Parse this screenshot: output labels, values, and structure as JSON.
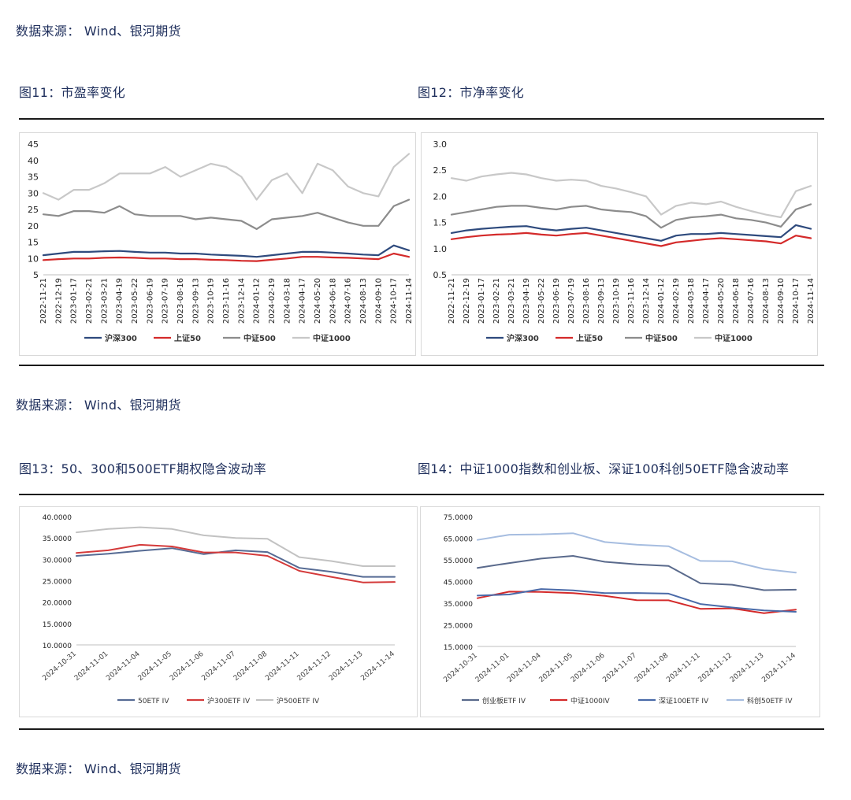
{
  "sources": [
    "数据来源：  Wind、银河期货",
    "数据来源：  Wind、银河期货",
    "数据来源：  Wind、银河期货"
  ],
  "figures": {
    "fig11_title": "图11：市盈率变化",
    "fig12_title": "图12：市净率变化",
    "fig13_title": "图13：50、300和500ETF期权隐含波动率",
    "fig14_title": "图14：中证1000指数和创业板、深证100科创50ETF隐含波动率"
  },
  "colors": {
    "hs300": "#2e4a7d",
    "sz50": "#d42a2a",
    "zz500": "#8c8c8c",
    "zz1000": "#c8c8c8",
    "etf50": "#566b94",
    "etf300": "#d43a3a",
    "etf500": "#c2c2c2",
    "cyb": "#5a6a8c",
    "zz1000iv": "#d42a2a",
    "sz100": "#4a6aa8",
    "kc50": "#a6bde0"
  },
  "chart_data": [
    {
      "id": "fig11",
      "type": "line",
      "x_ticks": [
        "2022-11-21",
        "2022-12-19",
        "2023-01-17",
        "2023-02-21",
        "2023-03-21",
        "2023-04-19",
        "2023-05-22",
        "2023-06-19",
        "2023-07-19",
        "2023-08-16",
        "2023-09-13",
        "2023-10-19",
        "2023-11-16",
        "2023-12-14",
        "2024-01-12",
        "2024-02-19",
        "2024-03-18",
        "2024-04-17",
        "2024-05-20",
        "2024-06-18",
        "2024-07-16",
        "2024-08-13",
        "2024-09-10",
        "2024-10-17",
        "2024-11-14"
      ],
      "y_ticks": [
        "5",
        "10",
        "15",
        "20",
        "25",
        "30",
        "35",
        "40",
        "45"
      ],
      "ylim": [
        5,
        45
      ],
      "series": [
        {
          "name": "沪深300",
          "values": [
            11,
            11.5,
            12,
            12,
            12.2,
            12.3,
            12,
            11.8,
            11.8,
            11.5,
            11.5,
            11.2,
            11,
            10.8,
            10.5,
            11,
            11.5,
            12,
            12,
            11.8,
            11.5,
            11.2,
            11,
            14,
            12.5
          ]
        },
        {
          "name": "上证50",
          "values": [
            9.5,
            9.8,
            10,
            10,
            10.2,
            10.3,
            10.2,
            10,
            10,
            9.8,
            9.8,
            9.6,
            9.5,
            9.3,
            9.2,
            9.6,
            10,
            10.5,
            10.5,
            10.3,
            10.2,
            10,
            9.8,
            11.5,
            10.5
          ]
        },
        {
          "name": "中证500",
          "values": [
            23.5,
            23,
            24.5,
            24.5,
            24,
            26,
            23.5,
            23,
            23,
            23,
            22,
            22.5,
            22,
            21.5,
            19,
            22,
            22.5,
            23,
            24,
            22.5,
            21,
            20,
            20,
            26,
            28
          ]
        },
        {
          "name": "中证1000",
          "values": [
            30,
            28,
            31,
            31,
            33,
            36,
            36,
            36,
            38,
            35,
            37,
            39,
            38,
            35,
            28,
            34,
            36,
            30,
            39,
            37,
            32,
            30,
            29,
            38,
            42
          ]
        }
      ]
    },
    {
      "id": "fig12",
      "type": "line",
      "x_ticks": [
        "2022-11-21",
        "2022-12-19",
        "2023-01-17",
        "2023-02-21",
        "2023-03-21",
        "2023-04-19",
        "2023-05-22",
        "2023-06-19",
        "2023-07-19",
        "2023-08-16",
        "2023-09-13",
        "2023-10-19",
        "2023-11-16",
        "2023-12-14",
        "2024-01-12",
        "2024-02-19",
        "2024-03-18",
        "2024-04-17",
        "2024-05-20",
        "2024-06-18",
        "2024-07-16",
        "2024-08-13",
        "2024-09-10",
        "2024-10-17",
        "2024-11-14"
      ],
      "y_ticks": [
        "0.5",
        "1.0",
        "1.5",
        "2.0",
        "2.5",
        "3.0"
      ],
      "ylim": [
        0.5,
        3.0
      ],
      "series": [
        {
          "name": "沪深300",
          "values": [
            1.3,
            1.35,
            1.38,
            1.4,
            1.42,
            1.43,
            1.38,
            1.35,
            1.38,
            1.4,
            1.35,
            1.3,
            1.25,
            1.2,
            1.15,
            1.25,
            1.28,
            1.28,
            1.3,
            1.28,
            1.26,
            1.24,
            1.22,
            1.45,
            1.38
          ]
        },
        {
          "name": "上证50",
          "values": [
            1.18,
            1.22,
            1.25,
            1.27,
            1.28,
            1.3,
            1.27,
            1.25,
            1.28,
            1.3,
            1.25,
            1.2,
            1.15,
            1.1,
            1.05,
            1.12,
            1.15,
            1.18,
            1.2,
            1.18,
            1.16,
            1.14,
            1.1,
            1.25,
            1.2
          ]
        },
        {
          "name": "中证500",
          "values": [
            1.65,
            1.7,
            1.75,
            1.8,
            1.82,
            1.82,
            1.78,
            1.75,
            1.8,
            1.82,
            1.75,
            1.72,
            1.7,
            1.62,
            1.4,
            1.55,
            1.6,
            1.62,
            1.65,
            1.58,
            1.55,
            1.5,
            1.42,
            1.75,
            1.85
          ]
        },
        {
          "name": "中证1000",
          "values": [
            2.35,
            2.3,
            2.38,
            2.42,
            2.45,
            2.42,
            2.35,
            2.3,
            2.32,
            2.3,
            2.2,
            2.15,
            2.08,
            2.0,
            1.65,
            1.82,
            1.88,
            1.85,
            1.9,
            1.8,
            1.72,
            1.65,
            1.6,
            2.1,
            2.2
          ]
        }
      ]
    },
    {
      "id": "fig13",
      "type": "line",
      "x_ticks": [
        "2024-10-31",
        "2024-11-01",
        "2024-11-04",
        "2024-11-05",
        "2024-11-06",
        "2024-11-07",
        "2024-11-08",
        "2024-11-11",
        "2024-11-12",
        "2024-11-13",
        "2024-11-14"
      ],
      "y_ticks": [
        "10.0000",
        "15.0000",
        "20.0000",
        "25.0000",
        "30.0000",
        "35.0000",
        "40.0000"
      ],
      "ylim": [
        10,
        40
      ],
      "series": [
        {
          "name": "50ETF IV",
          "values": [
            30.8,
            31.3,
            32.0,
            32.6,
            31.2,
            32.1,
            31.7,
            28.0,
            27.1,
            25.9,
            25.9
          ]
        },
        {
          "name": "沪300ETF IV",
          "values": [
            31.5,
            32.1,
            33.4,
            33.0,
            31.6,
            31.6,
            30.8,
            27.3,
            25.9,
            24.6,
            24.7
          ]
        },
        {
          "name": "沪500ETF IV",
          "values": [
            36.3,
            37.1,
            37.5,
            37.1,
            35.6,
            35.0,
            34.8,
            30.5,
            29.6,
            28.4,
            28.4
          ]
        }
      ]
    },
    {
      "id": "fig14",
      "type": "line",
      "x_ticks": [
        "2024-10-31",
        "2024-11-01",
        "2024-11-04",
        "2024-11-05",
        "2024-11-06",
        "2024-11-07",
        "2024-11-08",
        "2024-11-11",
        "2024-11-12",
        "2024-11-13",
        "2024-11-14"
      ],
      "y_ticks": [
        "15.0000",
        "25.0000",
        "35.0000",
        "45.0000",
        "55.0000",
        "65.0000",
        "75.0000"
      ],
      "ylim": [
        15,
        75
      ],
      "series": [
        {
          "name": "创业板ETF IV",
          "values": [
            51.3,
            53.5,
            55.6,
            56.8,
            54.1,
            52.9,
            52.2,
            44.2,
            43.5,
            41.0,
            41.2
          ]
        },
        {
          "name": "中证1000IV",
          "values": [
            37.3,
            40.3,
            40.2,
            39.6,
            38.4,
            36.4,
            36.3,
            32.4,
            32.6,
            30.4,
            32.0
          ]
        },
        {
          "name": "深证100ETF IV",
          "values": [
            38.5,
            39.0,
            41.5,
            40.9,
            39.6,
            39.7,
            39.4,
            34.6,
            33.0,
            31.6,
            31.0
          ]
        },
        {
          "name": "科创50ETF IV",
          "values": [
            64.2,
            66.6,
            66.8,
            67.3,
            63.2,
            62.0,
            61.3,
            54.5,
            54.3,
            50.8,
            49.1
          ]
        }
      ]
    }
  ]
}
